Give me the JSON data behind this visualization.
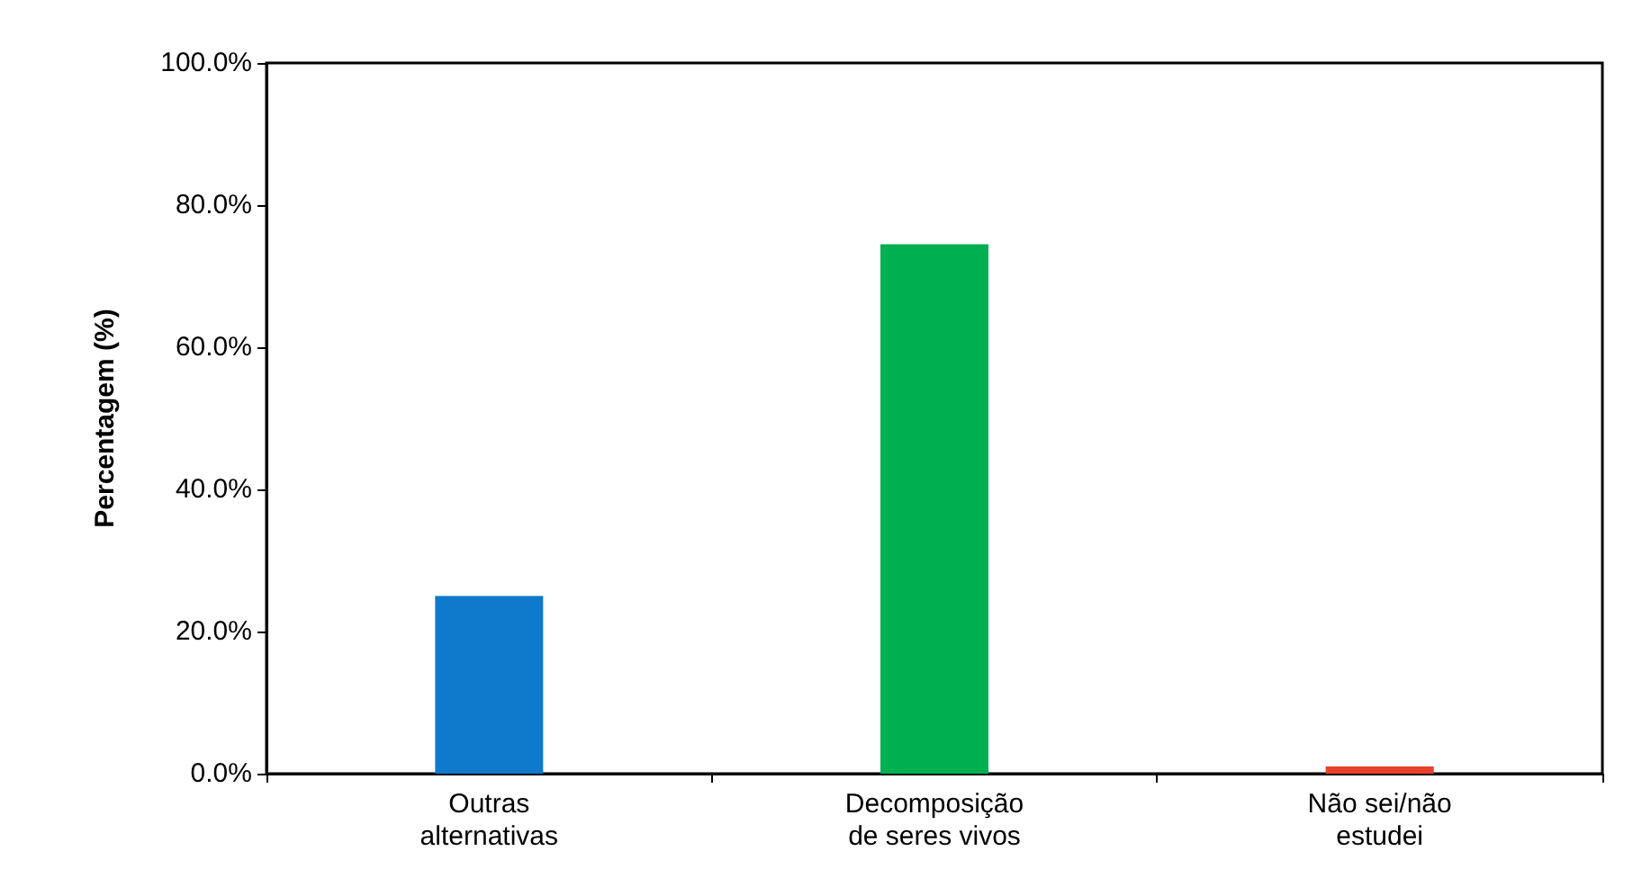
{
  "chart_data": {
    "type": "bar",
    "ylabel": "Percentagem (%)",
    "categories": [
      "Outras\nalternativas",
      "Decomposição\nde seres vivos",
      "Não sei/não\nestudei"
    ],
    "values": [
      25,
      74.5,
      1
    ],
    "colors": [
      "#0f7acb",
      "#00b050",
      "#e8402a"
    ],
    "ylim": [
      0,
      100
    ],
    "yticks": [
      {
        "value": 0,
        "label": "0.0%"
      },
      {
        "value": 20,
        "label": "20.0%"
      },
      {
        "value": 40,
        "label": "40.0%"
      },
      {
        "value": 60,
        "label": "60.0%"
      },
      {
        "value": 80,
        "label": "80.0%"
      },
      {
        "value": 100,
        "label": "100.0%"
      }
    ],
    "grid": false
  }
}
